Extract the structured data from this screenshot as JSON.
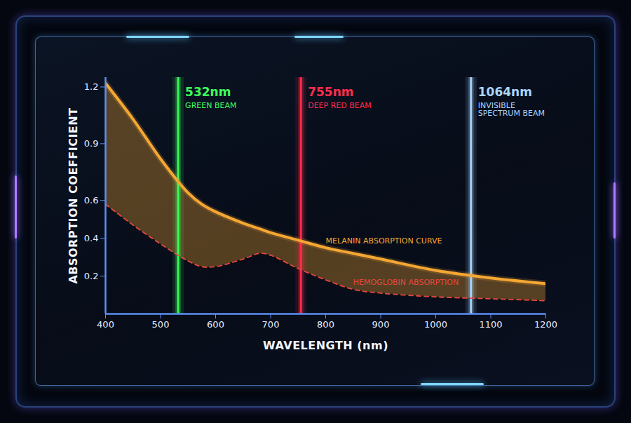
{
  "chart_data": {
    "type": "line",
    "x_label": "WAVELENGTH (nm)",
    "y_label": "ABSORPTION COEFFICIENT",
    "x": [
      400,
      450,
      500,
      550,
      575,
      600,
      650,
      680,
      700,
      750,
      800,
      850,
      900,
      1000,
      1100,
      1200
    ],
    "series": [
      {
        "name": "MELANIN ABSORPTION CURVE",
        "color": "#f5a733",
        "line_style": "solid",
        "values": [
          1.22,
          1.03,
          0.82,
          0.64,
          0.58,
          0.54,
          0.48,
          0.45,
          0.43,
          0.39,
          0.35,
          0.32,
          0.29,
          0.23,
          0.19,
          0.16
        ]
      },
      {
        "name": "HEMOGLOBIN ABSORPTION",
        "color": "#e8473d",
        "line_style": "dashed",
        "values": [
          0.58,
          0.47,
          0.37,
          0.28,
          0.25,
          0.25,
          0.29,
          0.32,
          0.31,
          0.24,
          0.18,
          0.13,
          0.11,
          0.09,
          0.08,
          0.07
        ]
      }
    ],
    "beams": [
      {
        "wavelength": 532,
        "label": "532nm",
        "description": "GREEN BEAM",
        "color": "#3dff5a"
      },
      {
        "wavelength": 755,
        "label": "755nm",
        "description": "DEEP RED BEAM",
        "color": "#ff2d4d"
      },
      {
        "wavelength": 1064,
        "label": "1064nm",
        "description": "INVISIBLE SPECTRUM BEAM",
        "color": "#a9d6ff"
      }
    ],
    "xlim": [
      400,
      1200
    ],
    "ylim": [
      0,
      1.25
    ],
    "xticks": [
      400,
      500,
      600,
      700,
      800,
      900,
      1000,
      1100,
      1200
    ],
    "yticks": [
      0.2,
      0.4,
      0.6,
      0.9,
      1.2
    ],
    "grid": false
  }
}
